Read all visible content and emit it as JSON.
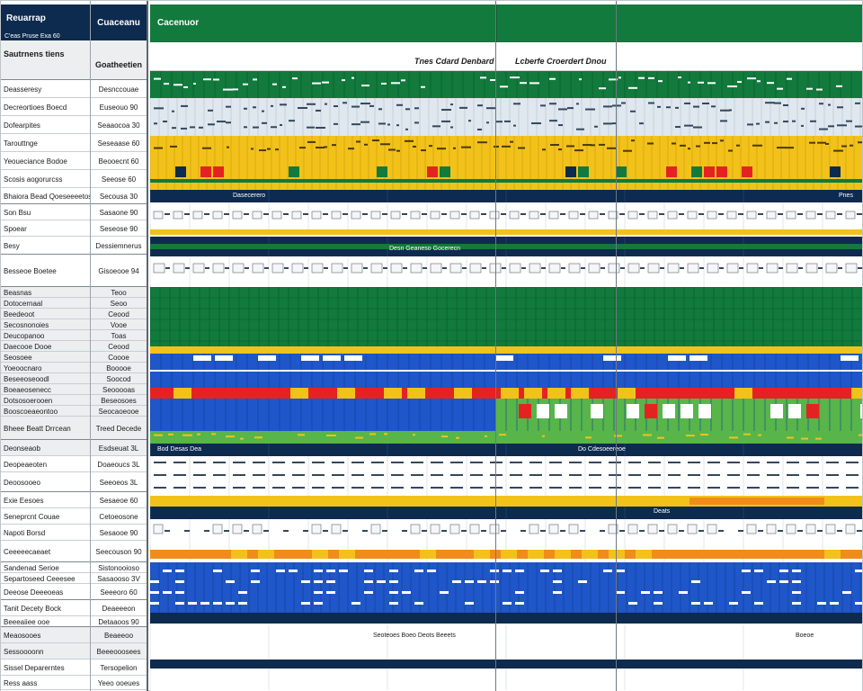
{
  "left": {
    "col_a_header": "Reuarrap",
    "col_a_subheader": "C'eas Pruse Exa 60",
    "col_a_section": "Sautrnens tiens",
    "col_b_header": "Cuaceanu",
    "col_b_section": "Goatheetien",
    "rows": [
      {
        "a": "Deasseresy",
        "b": "Desnccouae"
      },
      {
        "a": "Decreortioes Boecd",
        "b": "Euseouo 90"
      },
      {
        "a": "Dofearpites",
        "b": "Seaaocoa 30"
      },
      {
        "a": "Tarouttnge",
        "b": "Seseaase 60"
      },
      {
        "a": "Yeoueciance Bodoe",
        "b": "Beooecnt 60"
      },
      {
        "a": "Scosis aogorurcss",
        "b": "Seeose 60"
      },
      {
        "a": "Bhaiora Bead Qoeseeeetos",
        "b": "Secousa 30"
      },
      {
        "a": "Son Bsu",
        "b": "Sasaone 90"
      },
      {
        "a": "Spoear",
        "b": "Seseose 90"
      },
      {
        "a": "Besy",
        "b": "Dessiemnerus"
      },
      {
        "a": "Besseoe Boetee",
        "b": "Gisoeooe 94"
      },
      {
        "a": "Beasnas",
        "b": "Teoo"
      },
      {
        "a": "Dotocernaal",
        "b": "Seoo"
      },
      {
        "a": "Beedeoot",
        "b": "Ceood"
      },
      {
        "a": "Secosnonoies",
        "b": "Vooe"
      },
      {
        "a": "Deucopanoo",
        "b": "Toas"
      },
      {
        "a": "Daecooe Dooe",
        "b": "Ceood"
      },
      {
        "a": "Seosoee",
        "b": "Coooe"
      },
      {
        "a": "Yoeoocnaro",
        "b": "Booooe"
      },
      {
        "a": "Beseeoseoodl",
        "b": "Soocod"
      },
      {
        "a": "Boeaeosenecc",
        "b": "Seooooas"
      },
      {
        "a": "Dotsosoerooen",
        "b": "Beseosoes"
      },
      {
        "a": "Booscoeaeontoo",
        "b": "Seocaoeooe"
      },
      {
        "a": "Bheee Beatt Drrcean",
        "b": "Treed Decede"
      },
      {
        "a": "Deonseaob",
        "b": "Esdseuat 3L"
      },
      {
        "a": "Deopeaeoten",
        "b": "Doaeoucs 3L"
      },
      {
        "a": "Deoosooeo",
        "b": "Seeoeos 3L"
      },
      {
        "a": "Exie Eesoes",
        "b": "Sesaeoe 60"
      },
      {
        "a": "Seneprcnt Couae",
        "b": "Cetoeosone"
      },
      {
        "a": "Napoti Borsd",
        "b": "Sesaooe 90"
      },
      {
        "a": "Ceeeeecaeaet",
        "b": "Seecouson 90"
      },
      {
        "a": "Sandenad Serioe",
        "b": "Sistonooioso"
      },
      {
        "a": "Separtoseed Ceeesee",
        "b": "Sasaooso 3V"
      },
      {
        "a": "Deeose Deeeoeas",
        "b": "Seeeoro 60"
      },
      {
        "a": "Tanit Decety Bock",
        "b": "Deaeeeon"
      },
      {
        "a": "Beeeaiiee ooe",
        "b": "Detaaoos 90"
      },
      {
        "a": "Meaosooes",
        "b": "Beaeeoo"
      },
      {
        "a": "Sessoooonn",
        "b": "Beeeooosees"
      },
      {
        "a": "Sissel Deparerntes",
        "b": "Tersopelion"
      },
      {
        "a": "Ress aass",
        "b": "Yeeo ooeues"
      }
    ]
  },
  "grid": {
    "top_title": "Cacenuor",
    "month_left": "Tnes Cdard Denbard",
    "month_right": "Lcberfe Croerdert Dnou",
    "band_labels": {
      "navy1_left": "Dasecerero",
      "navy1_right": "Pnes",
      "navy2_mid": "Desn Geaneso Gocerecn",
      "navy3_left": "Bod Desas  Dea",
      "navy3_mid": "Do Cdesoeereoe",
      "navy4_mid": "Deats",
      "foot_left": "Seoteoes   Boeo   Deots  Beeets",
      "foot_right": "Boeoe"
    }
  },
  "colors": {
    "navy": "#0d2a4f",
    "green": "#117a3c",
    "blue": "#1f56c9",
    "yellow": "#f2c21a",
    "red": "#e52222",
    "light_green": "#57b54a",
    "orange": "#f08c1c"
  }
}
